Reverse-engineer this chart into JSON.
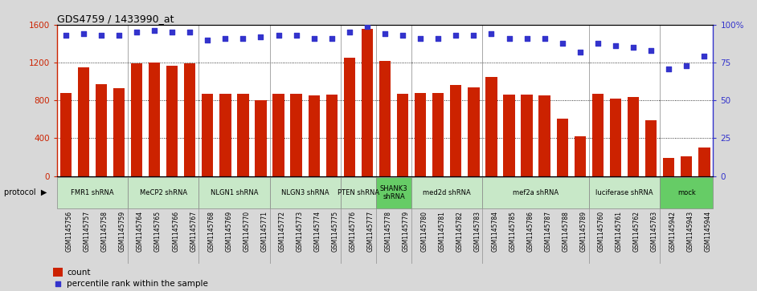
{
  "title": "GDS4759 / 1433990_at",
  "samples": [
    "GSM1145756",
    "GSM1145757",
    "GSM1145758",
    "GSM1145759",
    "GSM1145764",
    "GSM1145765",
    "GSM1145766",
    "GSM1145767",
    "GSM1145768",
    "GSM1145769",
    "GSM1145770",
    "GSM1145771",
    "GSM1145772",
    "GSM1145773",
    "GSM1145774",
    "GSM1145775",
    "GSM1145776",
    "GSM1145777",
    "GSM1145778",
    "GSM1145779",
    "GSM1145780",
    "GSM1145781",
    "GSM1145782",
    "GSM1145783",
    "GSM1145784",
    "GSM1145785",
    "GSM1145786",
    "GSM1145787",
    "GSM1145788",
    "GSM1145789",
    "GSM1145760",
    "GSM1145761",
    "GSM1145762",
    "GSM1145763",
    "GSM1145942",
    "GSM1145943",
    "GSM1145944"
  ],
  "counts": [
    880,
    1150,
    970,
    930,
    1190,
    1200,
    1165,
    1190,
    870,
    870,
    870,
    800,
    870,
    870,
    855,
    865,
    1250,
    1555,
    1220,
    870,
    875,
    880,
    960,
    940,
    1050,
    865,
    860,
    855,
    610,
    420,
    870,
    820,
    840,
    590,
    195,
    210,
    300
  ],
  "percentiles": [
    93,
    94,
    93,
    93,
    95,
    96,
    95,
    95,
    90,
    91,
    91,
    92,
    93,
    93,
    91,
    91,
    95,
    99,
    94,
    93,
    91,
    91,
    93,
    93,
    94,
    91,
    91,
    91,
    88,
    82,
    88,
    86,
    85,
    83,
    71,
    73,
    79
  ],
  "protocols": [
    {
      "label": "FMR1 shRNA",
      "start": 0,
      "end": 4,
      "color": "#c8e8c8"
    },
    {
      "label": "MeCP2 shRNA",
      "start": 4,
      "end": 8,
      "color": "#c8e8c8"
    },
    {
      "label": "NLGN1 shRNA",
      "start": 8,
      "end": 12,
      "color": "#c8e8c8"
    },
    {
      "label": "NLGN3 shRNA",
      "start": 12,
      "end": 16,
      "color": "#c8e8c8"
    },
    {
      "label": "PTEN shRNA",
      "start": 16,
      "end": 18,
      "color": "#c8e8c8"
    },
    {
      "label": "SHANK3\nshRNA",
      "start": 18,
      "end": 20,
      "color": "#66cc66"
    },
    {
      "label": "med2d shRNA",
      "start": 20,
      "end": 24,
      "color": "#c8e8c8"
    },
    {
      "label": "mef2a shRNA",
      "start": 24,
      "end": 30,
      "color": "#c8e8c8"
    },
    {
      "label": "luciferase shRNA",
      "start": 30,
      "end": 34,
      "color": "#c8e8c8"
    },
    {
      "label": "mock",
      "start": 34,
      "end": 37,
      "color": "#66cc66"
    }
  ],
  "group_boundaries": [
    4,
    8,
    12,
    16,
    18,
    20,
    24,
    30,
    34
  ],
  "bar_color": "#cc2200",
  "dot_color": "#3333cc",
  "ylim_left": [
    0,
    1600
  ],
  "ylim_right": [
    0,
    100
  ],
  "yticks_left": [
    0,
    400,
    800,
    1200,
    1600
  ],
  "ytick_labels_left": [
    "0",
    "400",
    "800",
    "1200",
    "1600"
  ],
  "yticks_right": [
    0,
    25,
    50,
    75,
    100
  ],
  "ytick_labels_right": [
    "0",
    "25",
    "50",
    "75",
    "100%"
  ],
  "hgrid_values": [
    400,
    800,
    1200
  ],
  "bg_color": "#d8d8d8",
  "plot_bg": "#ffffff"
}
